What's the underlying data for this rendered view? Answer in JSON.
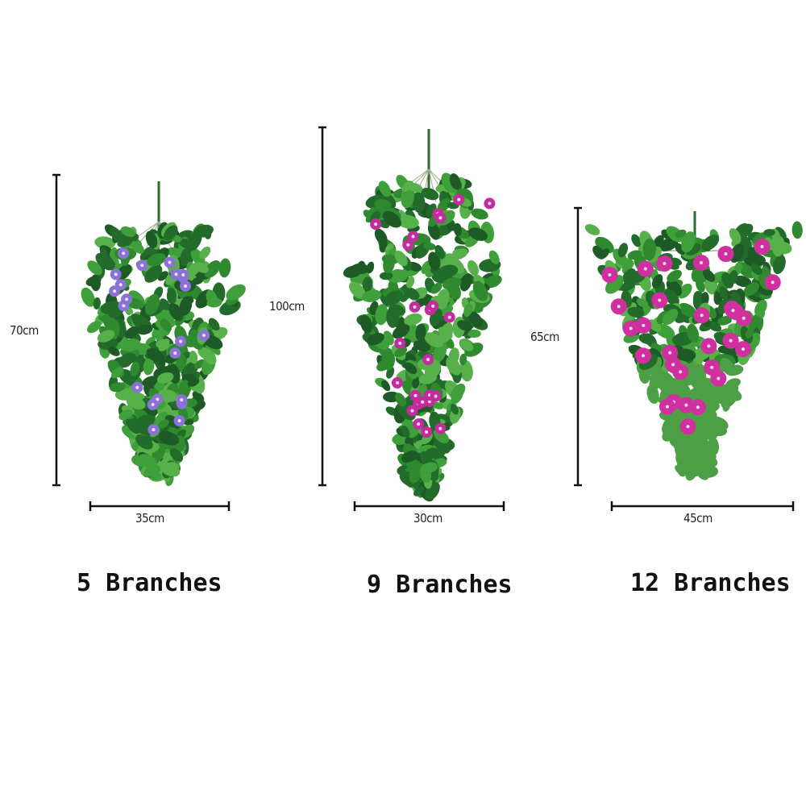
{
  "products": [
    {
      "caption": "5 Branches",
      "height_label": "70cm",
      "width_label": "35cm",
      "flower_color": "#8b72d8",
      "leaf_color": "#2f8a2f"
    },
    {
      "caption": "9 Branches",
      "height_label": "100cm",
      "width_label": "30cm",
      "flower_color": "#c22c9e",
      "leaf_color": "#1f6e2a"
    },
    {
      "caption": "12 Branches",
      "height_label": "65cm",
      "width_label": "45cm",
      "flower_color": "#d0309f",
      "leaf_color": "#1d5a26"
    }
  ]
}
